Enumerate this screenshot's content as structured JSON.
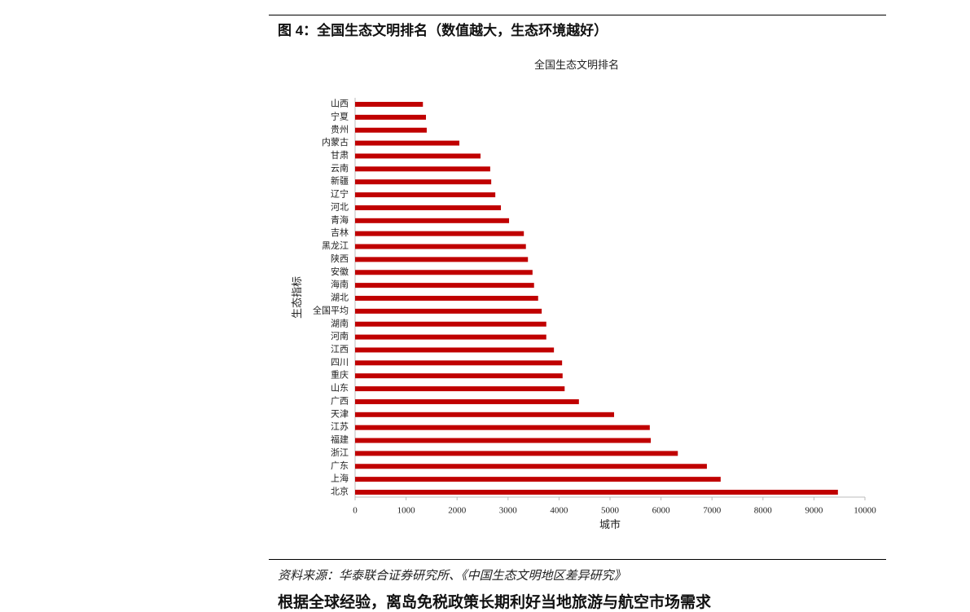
{
  "figure_caption": "图 4：全国生态文明排名（数值越大，生态环境越好）",
  "chart_data": {
    "type": "barh",
    "title": "全国生态文明排名",
    "x_label": "城市",
    "y_label": "生态指标",
    "categories": [
      "山西",
      "宁夏",
      "贵州",
      "内蒙古",
      "甘肃",
      "云南",
      "新疆",
      "辽宁",
      "河北",
      "青海",
      "吉林",
      "黑龙江",
      "陕西",
      "安徽",
      "海南",
      "湖北",
      "全国平均",
      "湖南",
      "河南",
      "江西",
      "四川",
      "重庆",
      "山东",
      "广西",
      "天津",
      "江苏",
      "福建",
      "浙江",
      "广东",
      "上海",
      "北京"
    ],
    "values": [
      1330,
      1390,
      1405,
      2045,
      2460,
      2650,
      2670,
      2750,
      2860,
      3020,
      3310,
      3350,
      3390,
      3480,
      3510,
      3590,
      3660,
      3750,
      3750,
      3900,
      4060,
      4070,
      4110,
      4390,
      5080,
      5780,
      5800,
      6330,
      6900,
      7170,
      9470
    ],
    "color": "#c00000",
    "xlim": [
      0,
      10000
    ],
    "xticks": [
      0,
      1000,
      2000,
      3000,
      4000,
      5000,
      6000,
      7000,
      8000,
      9000,
      10000
    ]
  },
  "source": "资料来源：华泰联合证券研究所、《中国生态文明地区差异研究》",
  "next_heading": "根据全球经验，离岛免税政策长期利好当地旅游与航空市场需求"
}
